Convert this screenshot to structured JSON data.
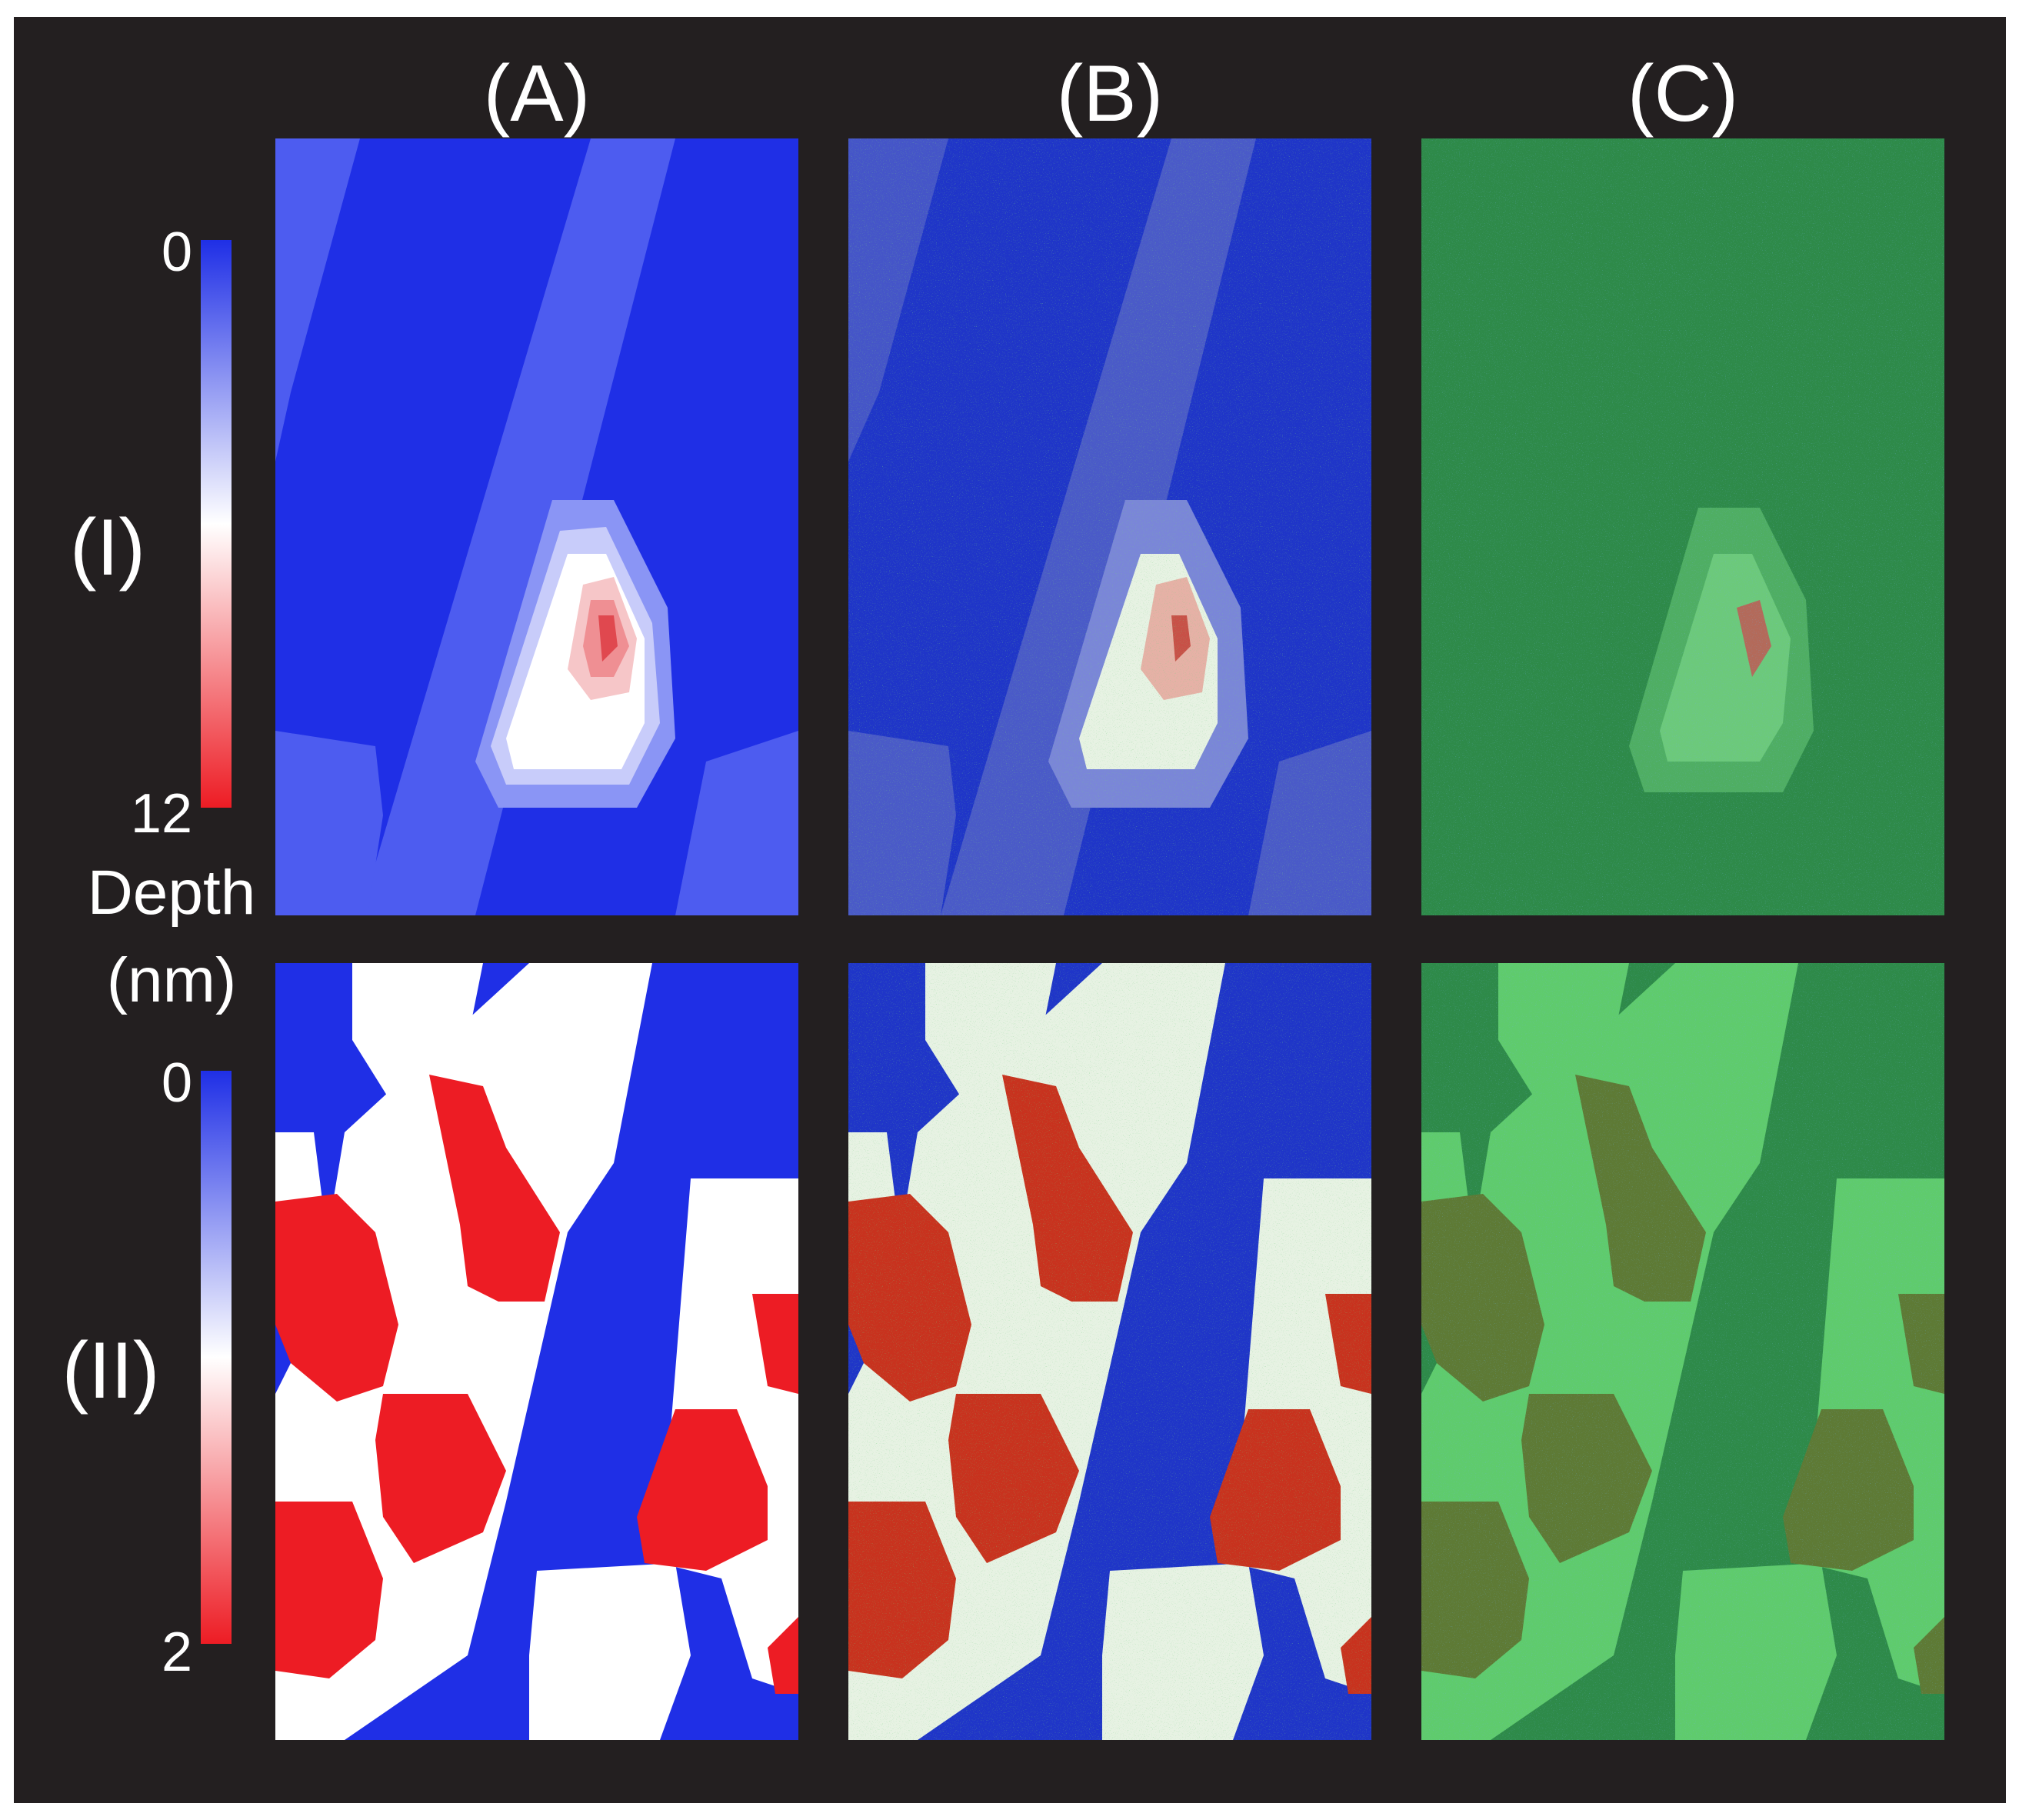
{
  "columns": [
    "(A)",
    "(B)",
    "(C)"
  ],
  "rows": [
    "(I)",
    "(II)"
  ],
  "colorbar_I": {
    "top_label": "0",
    "bottom_label": "12"
  },
  "colorbar_II": {
    "top_label": "0",
    "bottom_label": "2"
  },
  "depth_label": {
    "line1": "Depth",
    "line2": "(nm)"
  },
  "colors": {
    "background": "#231f20",
    "shallow": "#1f2fe6",
    "mid": "#ffffff",
    "deep": "#ed1c24",
    "noise": "#2e9e3a"
  }
}
